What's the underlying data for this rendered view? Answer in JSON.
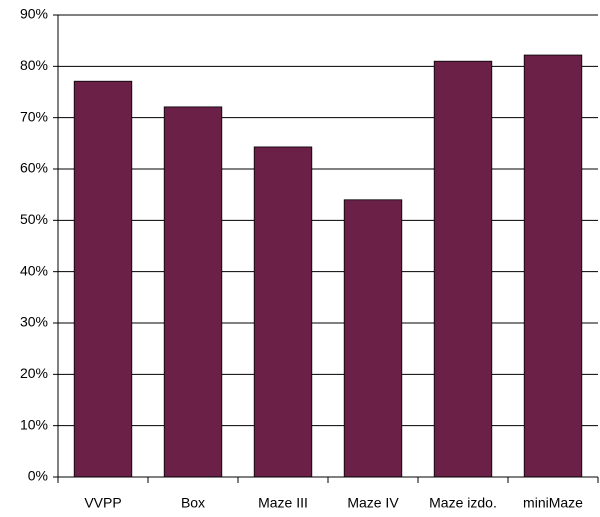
{
  "chart_data": {
    "type": "bar",
    "categories": [
      "VVPP",
      "Box",
      "Maze III",
      "Maze IV",
      "Maze izdo.",
      "miniMaze"
    ],
    "values": [
      77.1,
      72.1,
      64.3,
      54.0,
      81.0,
      82.2
    ],
    "color": "#6b2048",
    "ylim": [
      0,
      90
    ],
    "yticks": [
      {
        "value": 0,
        "label": "0%"
      },
      {
        "value": 10,
        "label": "10%"
      },
      {
        "value": 20,
        "label": "20%"
      },
      {
        "value": 30,
        "label": "30%"
      },
      {
        "value": 40,
        "label": "40%"
      },
      {
        "value": 50,
        "label": "50%"
      },
      {
        "value": 60,
        "label": "60%"
      },
      {
        "value": 70,
        "label": "70%"
      },
      {
        "value": 80,
        "label": "80%"
      },
      {
        "value": 90,
        "label": "90%"
      }
    ],
    "grid": true
  }
}
